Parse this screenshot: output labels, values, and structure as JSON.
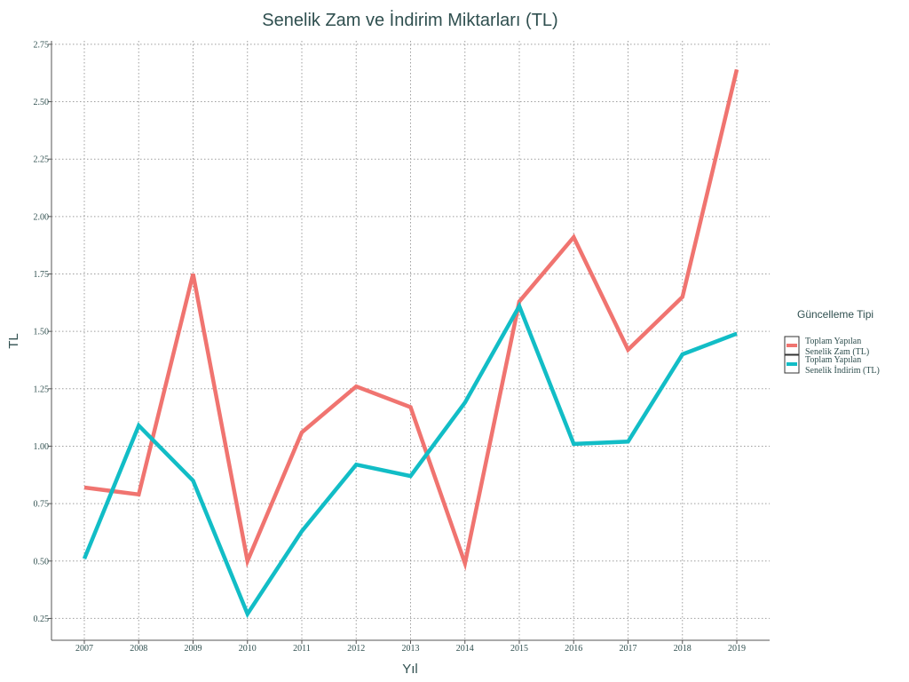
{
  "chart_data": {
    "type": "line",
    "title": "Senelik Zam ve İndirim Miktarları (TL)",
    "xlabel": "Yıl",
    "ylabel": "TL",
    "x": [
      "2007",
      "2008",
      "2009",
      "2010",
      "2011",
      "2012",
      "2013",
      "2014",
      "2015",
      "2016",
      "2017",
      "2018",
      "2019"
    ],
    "yticks": [
      "0.25",
      "0.50",
      "0.75",
      "1.00",
      "1.25",
      "1.50",
      "1.75",
      "2.00",
      "2.25",
      "2.50",
      "2.75"
    ],
    "ylim": [
      0.155,
      2.765
    ],
    "grid": true,
    "legend": {
      "title": "Güncelleme Tipi",
      "placement": "right",
      "entries": [
        {
          "line1": "Toplam Yapılan",
          "line2": "Senelik Zam (TL)"
        },
        {
          "line1": "Toplam Yapılan",
          "line2": "Senelik İndirim (TL)"
        }
      ]
    },
    "series": [
      {
        "name": "Toplam Yapılan Senelik Zam (TL)",
        "color": "#f07470",
        "values": [
          0.82,
          0.79,
          1.75,
          0.5,
          1.06,
          1.26,
          1.17,
          0.49,
          1.63,
          1.91,
          1.42,
          1.65,
          2.64
        ]
      },
      {
        "name": "Toplam Yapılan Senelik İndirim (TL)",
        "color": "#12bdc6",
        "values": [
          0.51,
          1.09,
          0.85,
          0.27,
          0.63,
          0.92,
          0.87,
          1.19,
          1.61,
          1.01,
          1.02,
          1.4,
          1.49
        ]
      }
    ]
  }
}
